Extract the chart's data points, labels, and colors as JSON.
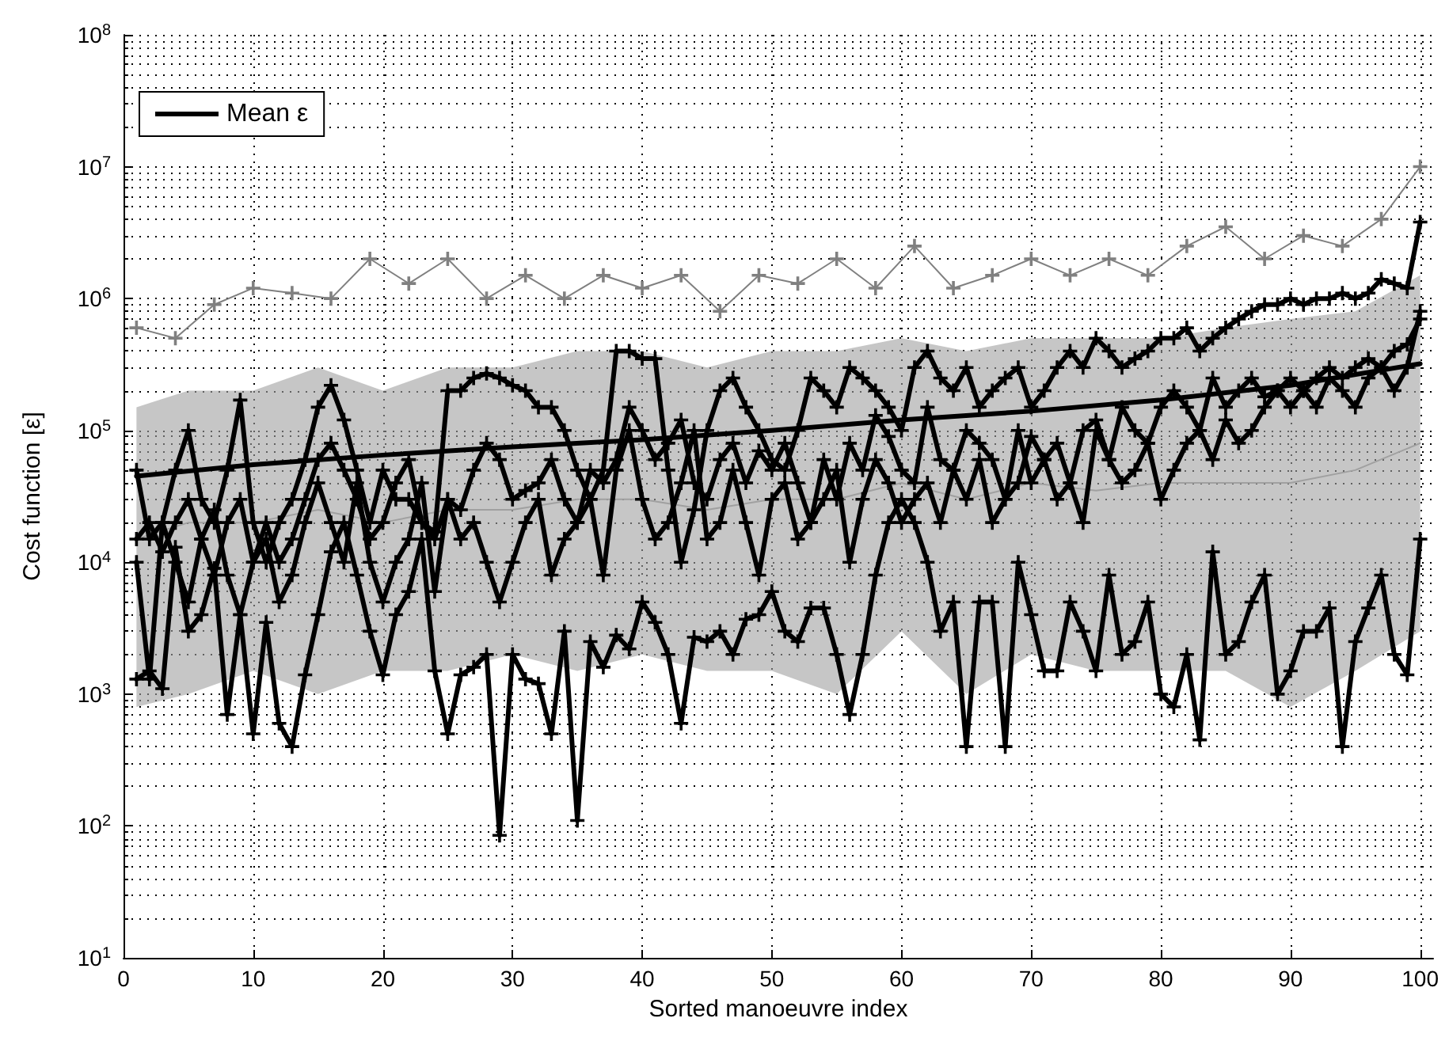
{
  "chart_data": {
    "type": "line",
    "xlabel": "Sorted manoeuvre index",
    "ylabel": "Cost function [ε]",
    "log": "y",
    "grid": true,
    "legend": "top left",
    "line_style": "solid",
    "xlim": [
      0,
      101
    ],
    "x": [
      1,
      2,
      3,
      4,
      5,
      6,
      7,
      8,
      9,
      10,
      11,
      12,
      13,
      14,
      15,
      16,
      17,
      18,
      19,
      20,
      21,
      22,
      23,
      24,
      25,
      26,
      27,
      28,
      29,
      30,
      31,
      32,
      33,
      34,
      35,
      36,
      37,
      38,
      39,
      40,
      41,
      42,
      43,
      44,
      45,
      46,
      47,
      48,
      49,
      50,
      51,
      52,
      53,
      54,
      55,
      56,
      57,
      58,
      59,
      60,
      61,
      62,
      63,
      64,
      65,
      66,
      67,
      68,
      69,
      70,
      71,
      72,
      73,
      74,
      75,
      76,
      77,
      78,
      79,
      80,
      81,
      82,
      83,
      84,
      85,
      86,
      87,
      88,
      89,
      90,
      91,
      92,
      93,
      94,
      95,
      96,
      97,
      98,
      99,
      100
    ],
    "xticks": [
      0,
      10,
      20,
      30,
      40,
      50,
      60,
      70,
      80,
      90,
      100
    ],
    "ylim": [
      10,
      100000000
    ],
    "yticks": [
      {
        "value": 10,
        "label": "10$^{1}$"
      },
      {
        "value": 100,
        "label": "10$^{2}$"
      },
      {
        "value": 1000,
        "label": "10$^{3}$"
      },
      {
        "value": 10000,
        "label": "10$^{4}$"
      },
      {
        "value": 100000,
        "label": "10$^{5}$"
      },
      {
        "value": 1000000,
        "label": "10$^{6}$"
      },
      {
        "value": 10000000,
        "label": "10$^{7}$"
      },
      {
        "value": 100000000,
        "label": "10$^{8}$"
      }
    ],
    "series": [
      {
        "color": "#a0a0a0",
        "marker": "none",
        "x": [
          1,
          5,
          10,
          15,
          20,
          25,
          30,
          35,
          40,
          45,
          50,
          55,
          60,
          65,
          70,
          75,
          80,
          85,
          90,
          95,
          100
        ],
        "values": [
          15000,
          20000,
          20000,
          25000,
          20000,
          25000,
          25000,
          30000,
          30000,
          25000,
          30000,
          30000,
          40000,
          30000,
          40000,
          35000,
          40000,
          40000,
          40000,
          50000,
          80000
        ],
        "lower": [
          800,
          1000,
          1500,
          1000,
          1500,
          1500,
          2000,
          1500,
          2000,
          1500,
          1500,
          1000,
          3000,
          1000,
          2000,
          1500,
          1500,
          1500,
          800,
          1500,
          3000
        ],
        "upper": [
          150000,
          200000,
          200000,
          300000,
          200000,
          300000,
          300000,
          400000,
          400000,
          300000,
          400000,
          400000,
          500000,
          400000,
          500000,
          500000,
          500000,
          600000,
          700000,
          800000,
          1500000
        ]
      },
      {
        "color": "#808080",
        "marker": "cross",
        "x": [
          1,
          4,
          7,
          10,
          13,
          16,
          19,
          22,
          25,
          28,
          31,
          34,
          37,
          40,
          43,
          46,
          49,
          52,
          55,
          58,
          61,
          64,
          67,
          70,
          73,
          76,
          79,
          82,
          85,
          88,
          91,
          94,
          97,
          100
        ],
        "values": [
          600000,
          500000,
          900000,
          1200000,
          1100000,
          1000000,
          2000000,
          1300000,
          2000000,
          1000000,
          1500000,
          1000000,
          1500000,
          1200000,
          1500000,
          800000,
          1500000,
          1300000,
          2000000,
          1200000,
          2500000,
          1200000,
          1500000,
          2000000,
          1500000,
          2000000,
          1500000,
          2500000,
          3500000,
          2000000,
          3000000,
          2500000,
          4000000,
          10000000
        ]
      },
      {
        "color": "#000000",
        "marker": "cross",
        "values": [
          50000,
          15000,
          20000,
          50000,
          100000,
          30000,
          20000,
          50000,
          170000,
          20000,
          10000,
          20000,
          30000,
          60000,
          150000,
          220000,
          120000,
          50000,
          20000,
          50000,
          30000,
          30000,
          20000,
          17000,
          200000,
          200000,
          250000,
          270000,
          250000,
          220000,
          200000,
          150000,
          150000,
          100000,
          50000,
          30000,
          50000,
          400000,
          400000,
          350000,
          350000,
          50000,
          10000,
          25000,
          100000,
          200000,
          250000,
          150000,
          100000,
          60000,
          50000,
          100000,
          250000,
          200000,
          150000,
          300000,
          250000,
          200000,
          150000,
          100000,
          300000,
          400000,
          250000,
          200000,
          300000,
          150000,
          200000,
          250000,
          300000,
          150000,
          200000,
          300000,
          400000,
          300000,
          500000,
          400000,
          300000,
          350000,
          400000,
          500000,
          500000,
          600000,
          400000,
          500000,
          600000,
          700000,
          800000,
          900000,
          900000,
          1000000,
          900000,
          1000000,
          1000000,
          1100000,
          1000000,
          1100000,
          1400000,
          1300000,
          1200000,
          3800000
        ]
      },
      {
        "color": "#000000",
        "marker": "cross",
        "values": [
          15000,
          20000,
          12000,
          20000,
          30000,
          15000,
          8000,
          20000,
          30000,
          10000,
          20000,
          10000,
          15000,
          30000,
          60000,
          80000,
          50000,
          30000,
          15000,
          20000,
          40000,
          60000,
          20000,
          15000,
          30000,
          25000,
          50000,
          80000,
          60000,
          30000,
          35000,
          40000,
          60000,
          30000,
          20000,
          50000,
          40000,
          60000,
          150000,
          100000,
          60000,
          80000,
          120000,
          40000,
          30000,
          60000,
          80000,
          40000,
          70000,
          50000,
          80000,
          40000,
          20000,
          60000,
          30000,
          80000,
          50000,
          130000,
          90000,
          50000,
          40000,
          150000,
          60000,
          50000,
          100000,
          80000,
          60000,
          30000,
          40000,
          90000,
          60000,
          80000,
          40000,
          100000,
          120000,
          60000,
          150000,
          100000,
          80000,
          150000,
          200000,
          150000,
          100000,
          250000,
          150000,
          200000,
          250000,
          180000,
          200000,
          250000,
          200000,
          250000,
          300000,
          250000,
          300000,
          350000,
          300000,
          400000,
          450000,
          700000
        ]
      },
      {
        "color": "#000000",
        "marker": "cross",
        "values": [
          10000,
          1300,
          20000,
          10000,
          5000,
          15000,
          25000,
          8000,
          4000,
          10000,
          15000,
          5000,
          8000,
          20000,
          40000,
          20000,
          10000,
          40000,
          10000,
          5000,
          10000,
          15000,
          40000,
          6000,
          30000,
          15000,
          20000,
          10000,
          5000,
          10000,
          20000,
          30000,
          8000,
          15000,
          20000,
          30000,
          8000,
          50000,
          100000,
          30000,
          15000,
          20000,
          40000,
          100000,
          15000,
          20000,
          50000,
          20000,
          8000,
          30000,
          40000,
          15000,
          20000,
          30000,
          50000,
          10000,
          30000,
          60000,
          40000,
          20000,
          30000,
          40000,
          20000,
          50000,
          30000,
          60000,
          20000,
          30000,
          100000,
          40000,
          60000,
          30000,
          40000,
          20000,
          100000,
          60000,
          40000,
          50000,
          80000,
          30000,
          50000,
          80000,
          100000,
          60000,
          120000,
          80000,
          100000,
          150000,
          200000,
          150000,
          200000,
          150000,
          250000,
          200000,
          150000,
          250000,
          300000,
          200000,
          300000,
          800000
        ]
      },
      {
        "color": "#000000",
        "marker": "cross",
        "values": [
          1300,
          1500,
          1100,
          13000,
          3000,
          4000,
          9000,
          700,
          4000,
          500,
          3500,
          600,
          400,
          1400,
          4000,
          12000,
          20000,
          8000,
          3000,
          1400,
          4000,
          6000,
          15000,
          1500,
          500,
          1400,
          1600,
          2000,
          85,
          2000,
          1300,
          1200,
          500,
          3000,
          110,
          2500,
          1600,
          2800,
          2200,
          5000,
          3500,
          2000,
          600,
          2700,
          2500,
          3000,
          2000,
          3700,
          4000,
          6000,
          3000,
          2500,
          4500,
          4500,
          2000,
          700,
          2000,
          8000,
          20000,
          30000,
          20000,
          10000,
          3000,
          5000,
          400,
          5000,
          5000,
          400,
          10000,
          4000,
          1500,
          1500,
          5000,
          3000,
          1500,
          8000,
          2000,
          2500,
          5000,
          1000,
          800,
          2000,
          450,
          12000,
          2000,
          2500,
          5000,
          8000,
          1000,
          1500,
          3000,
          3000,
          4500,
          400,
          2500,
          4500,
          8000,
          2000,
          1400,
          15000
        ]
      },
      {
        "name": "Mean ε",
        "color": "#000000",
        "marker": "none",
        "x": [
          1,
          10,
          20,
          30,
          40,
          50,
          60,
          70,
          80,
          90,
          100
        ],
        "values": [
          45000,
          55000,
          65000,
          75000,
          85000,
          100000,
          120000,
          140000,
          170000,
          220000,
          320000
        ]
      }
    ]
  }
}
